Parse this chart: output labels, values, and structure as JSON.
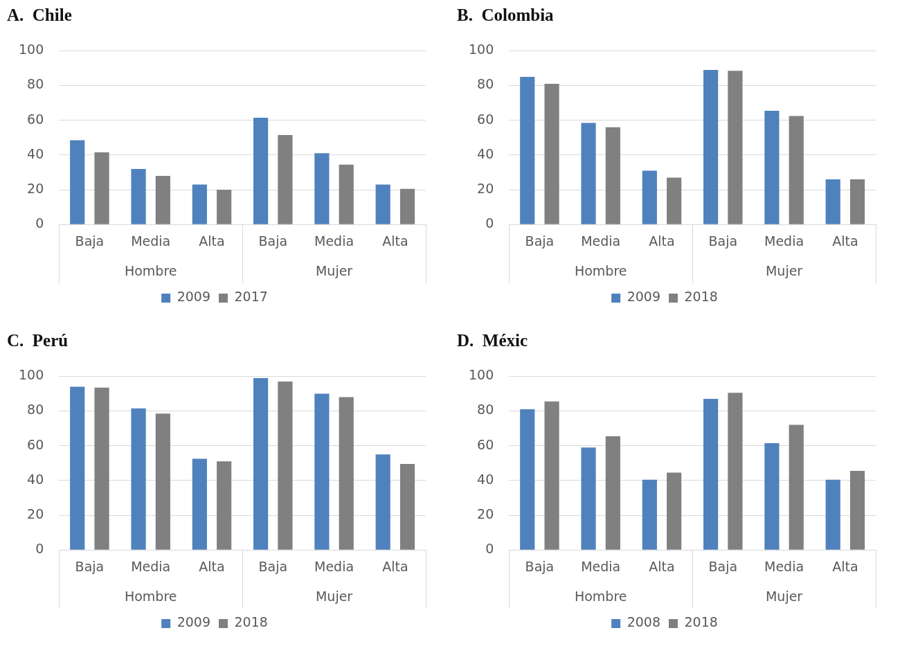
{
  "chart_data": [
    {
      "type": "bar",
      "title": "A.  Chile",
      "categories": [
        "Baja",
        "Media",
        "Alta",
        "Baja",
        "Media",
        "Alta"
      ],
      "annotations": [
        "Hombre",
        "Mujer"
      ],
      "series": [
        {
          "name": "2009",
          "color": "#4f81bd",
          "values": [
            48.5,
            32,
            23,
            61.5,
            41,
            23
          ]
        },
        {
          "name": "2017",
          "color": "#808080",
          "values": [
            41.5,
            28,
            20,
            51.5,
            34.5,
            20.5
          ]
        }
      ],
      "ylim": [
        0,
        100
      ],
      "yticks": [
        0,
        20,
        40,
        60,
        80,
        100
      ],
      "grid": "y",
      "legend": "bottom"
    },
    {
      "type": "bar",
      "title": "B.  Colombia",
      "categories": [
        "Baja",
        "Media",
        "Alta",
        "Baja",
        "Media",
        "Alta"
      ],
      "annotations": [
        "Hombre",
        "Mujer"
      ],
      "series": [
        {
          "name": "2009",
          "color": "#4f81bd",
          "values": [
            85,
            58.5,
            31,
            89,
            65.5,
            26
          ]
        },
        {
          "name": "2018",
          "color": "#808080",
          "values": [
            81,
            56,
            27,
            88.5,
            62.5,
            26
          ]
        }
      ],
      "ylim": [
        0,
        100
      ],
      "yticks": [
        0,
        20,
        40,
        60,
        80,
        100
      ],
      "grid": "y",
      "legend": "bottom"
    },
    {
      "type": "bar",
      "title": "C.  Perú",
      "categories": [
        "Baja",
        "Media",
        "Alta",
        "Baja",
        "Media",
        "Alta"
      ],
      "annotations": [
        "Hombre",
        "Mujer"
      ],
      "series": [
        {
          "name": "2009",
          "color": "#4f81bd",
          "values": [
            94,
            81.5,
            52.5,
            99,
            90,
            55
          ]
        },
        {
          "name": "2018",
          "color": "#808080",
          "values": [
            93.5,
            78.5,
            51,
            97,
            88,
            49.5
          ]
        }
      ],
      "ylim": [
        0,
        100
      ],
      "yticks": [
        0,
        20,
        40,
        60,
        80,
        100
      ],
      "grid": "y",
      "legend": "bottom"
    },
    {
      "type": "bar",
      "title": "D.  Méxic",
      "categories": [
        "Baja",
        "Media",
        "Alta",
        "Baja",
        "Media",
        "Alta"
      ],
      "annotations": [
        "Hombre",
        "Mujer"
      ],
      "series": [
        {
          "name": "2008",
          "color": "#4f81bd",
          "values": [
            81,
            59,
            40.5,
            87,
            61.5,
            40.5
          ]
        },
        {
          "name": "2018",
          "color": "#808080",
          "values": [
            85.5,
            65.5,
            44.5,
            90.5,
            72,
            45.5
          ]
        }
      ],
      "ylim": [
        0,
        100
      ],
      "yticks": [
        0,
        20,
        40,
        60,
        80,
        100
      ],
      "grid": "y",
      "legend": "bottom"
    }
  ]
}
